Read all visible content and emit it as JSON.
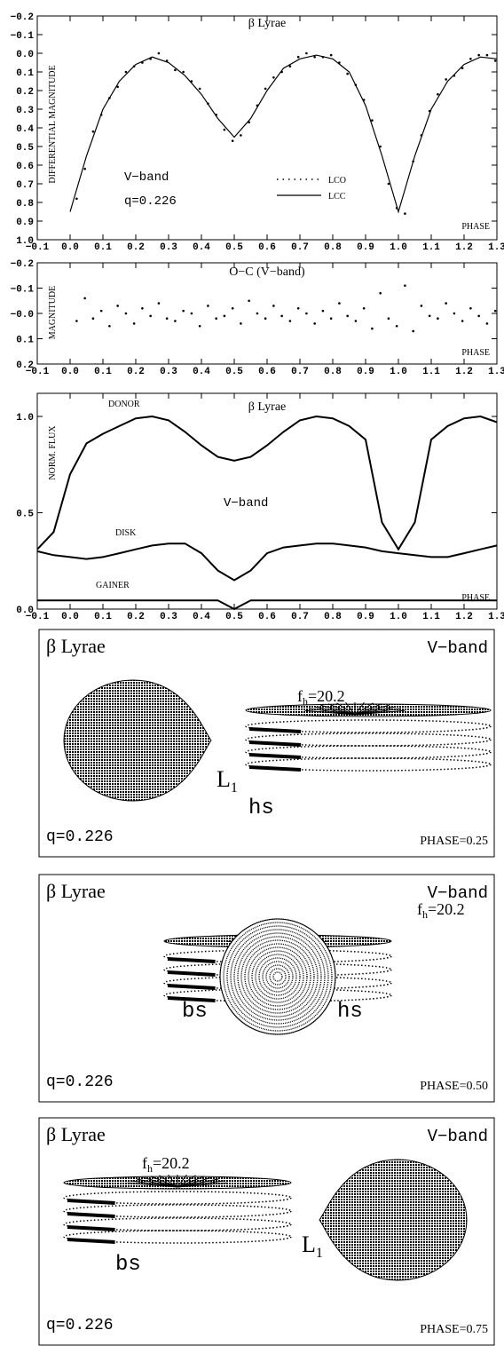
{
  "chart_data": [
    {
      "type": "scatter",
      "title": "β Lyrae",
      "ylabel": "DIFFERENTIAL MAGNITUDE",
      "xlabel": "PHASE",
      "xlim": [
        -0.1,
        1.3
      ],
      "ylim": [
        1.0,
        -0.2
      ],
      "xticks": [
        {
          "value": -0.1,
          "label": "−0.1"
        },
        {
          "value": 0,
          "label": "0.0"
        },
        0.1,
        0.2,
        0.3,
        0.4,
        0.5,
        0.6,
        0.7,
        0.8,
        0.9,
        {
          "value": 1,
          "label": "1.0"
        },
        1.1,
        1.2,
        1.3
      ],
      "yticks": [
        {
          "value": -0.2,
          "label": "−0.2"
        },
        {
          "value": -0.1,
          "label": "−0.1"
        },
        {
          "value": 0,
          "label": "0.0"
        },
        0.1,
        0.2,
        0.3,
        0.4,
        0.5,
        0.6,
        0.7,
        0.8,
        0.9,
        {
          "value": 1,
          "label": "1.0"
        }
      ],
      "annotations": [
        "V−band",
        "q=0.226"
      ],
      "series": [
        {
          "name": "LCO",
          "mode": "markers",
          "color": "#000000",
          "x": [
            0.02,
            0.045,
            0.07,
            0.095,
            0.12,
            0.145,
            0.17,
            0.195,
            0.22,
            0.245,
            0.27,
            0.295,
            0.32,
            0.345,
            0.37,
            0.395,
            0.42,
            0.445,
            0.47,
            0.495,
            0.52,
            0.545,
            0.57,
            0.595,
            0.62,
            0.645,
            0.67,
            0.695,
            0.72,
            0.745,
            0.77,
            0.795,
            0.82,
            0.845,
            0.87,
            0.895,
            0.92,
            0.945,
            0.97,
            0.995,
            1.02,
            1.045,
            1.07,
            1.095,
            1.12,
            1.145,
            1.17,
            1.195,
            1.22,
            1.245,
            1.27,
            1.295
          ],
          "values": [
            0.78,
            0.62,
            0.42,
            0.33,
            0.24,
            0.18,
            0.1,
            0.07,
            0.05,
            0.03,
            0.0,
            0.04,
            0.09,
            0.1,
            0.15,
            0.19,
            0.27,
            0.33,
            0.41,
            0.47,
            0.44,
            0.37,
            0.28,
            0.19,
            0.13,
            0.1,
            0.07,
            0.02,
            0.0,
            0.02,
            0.02,
            0.01,
            0.05,
            0.11,
            0.17,
            0.25,
            0.36,
            0.5,
            0.7,
            0.83,
            0.86,
            0.58,
            0.44,
            0.31,
            0.22,
            0.14,
            0.12,
            0.08,
            0.03,
            0.01,
            0.01,
            0.04
          ]
        },
        {
          "name": "LCC",
          "mode": "lines",
          "color": "#000000",
          "x": [
            0,
            0.05,
            0.1,
            0.15,
            0.2,
            0.25,
            0.3,
            0.35,
            0.4,
            0.45,
            0.5,
            0.55,
            0.6,
            0.65,
            0.7,
            0.75,
            0.8,
            0.85,
            0.9,
            0.95,
            1.0,
            1.05,
            1.1,
            1.15,
            1.2,
            1.25,
            1.3
          ],
          "values": [
            0.85,
            0.55,
            0.3,
            0.15,
            0.06,
            0.02,
            0.05,
            0.12,
            0.22,
            0.35,
            0.45,
            0.35,
            0.2,
            0.08,
            0.03,
            0.01,
            0.03,
            0.1,
            0.28,
            0.55,
            0.85,
            0.55,
            0.3,
            0.15,
            0.06,
            0.02,
            0.03
          ]
        }
      ]
    },
    {
      "type": "scatter",
      "title": "O−C (V−band)",
      "ylabel": "MAGNITUDE",
      "xlabel": "PHASE",
      "xlim": [
        -0.1,
        1.3
      ],
      "ylim": [
        0.2,
        -0.2
      ],
      "xticks": [
        {
          "value": -0.1,
          "label": "−0.1"
        },
        {
          "value": 0,
          "label": "0.0"
        },
        0.1,
        0.2,
        0.3,
        0.4,
        0.5,
        0.6,
        0.7,
        0.8,
        0.9,
        {
          "value": 1,
          "label": "1.0"
        },
        1.1,
        1.2,
        1.3
      ],
      "yticks": [
        {
          "value": -0.2,
          "label": "−0.2"
        },
        {
          "value": -0.1,
          "label": "−0.1"
        },
        {
          "value": 0,
          "label": "−0.0"
        },
        0.1,
        0.2
      ],
      "series": [
        {
          "mode": "markers",
          "color": "#000000",
          "x": [
            0.02,
            0.045,
            0.07,
            0.095,
            0.12,
            0.145,
            0.17,
            0.195,
            0.22,
            0.245,
            0.27,
            0.295,
            0.32,
            0.345,
            0.37,
            0.395,
            0.42,
            0.445,
            0.47,
            0.495,
            0.52,
            0.545,
            0.57,
            0.595,
            0.62,
            0.645,
            0.67,
            0.695,
            0.72,
            0.745,
            0.77,
            0.795,
            0.82,
            0.845,
            0.87,
            0.895,
            0.92,
            0.945,
            0.97,
            0.995,
            1.02,
            1.045,
            1.07,
            1.095,
            1.12,
            1.145,
            1.17,
            1.195,
            1.22,
            1.245,
            1.27,
            1.295
          ],
          "values": [
            0.03,
            -0.06,
            0.02,
            -0.01,
            0.05,
            -0.03,
            0.0,
            0.04,
            -0.02,
            0.01,
            -0.04,
            0.02,
            0.03,
            -0.01,
            0.0,
            0.05,
            -0.03,
            0.02,
            0.01,
            -0.02,
            0.04,
            -0.05,
            0.0,
            0.02,
            -0.03,
            0.01,
            0.03,
            -0.02,
            0.0,
            0.04,
            -0.01,
            0.02,
            -0.04,
            0.01,
            0.03,
            -0.02,
            0.06,
            -0.08,
            0.02,
            0.05,
            -0.11,
            0.07,
            -0.03,
            0.01,
            0.02,
            -0.04,
            0.0,
            0.03,
            -0.02,
            0.01,
            0.04,
            -0.01
          ]
        }
      ]
    },
    {
      "type": "line",
      "title": "β Lyrae",
      "ylabel": "NORM. FLUX",
      "xlabel": "PHASE",
      "xlim": [
        -0.1,
        1.3
      ],
      "ylim": [
        0,
        1.12
      ],
      "xticks": [
        {
          "value": -0.1,
          "label": "−0.1"
        },
        {
          "value": 0,
          "label": "0.0"
        },
        0.1,
        0.2,
        0.3,
        0.4,
        0.5,
        0.6,
        0.7,
        0.8,
        0.9,
        {
          "value": 1,
          "label": "1.0"
        },
        1.1,
        1.2,
        1.3
      ],
      "yticks": [
        {
          "value": 0,
          "label": "0.0"
        },
        0.5,
        {
          "value": 1,
          "label": "1.0"
        }
      ],
      "annotations": [
        "DONOR",
        "DISK",
        "GAINER",
        "V−band"
      ],
      "series": [
        {
          "mode": "lines",
          "color": "#000000",
          "x": [
            -0.1,
            -0.05,
            0,
            0.05,
            0.1,
            0.15,
            0.2,
            0.25,
            0.3,
            0.35,
            0.4,
            0.45,
            0.5,
            0.55,
            0.6,
            0.65,
            0.7,
            0.75,
            0.8,
            0.85,
            0.9,
            0.95,
            1.0,
            1.05,
            1.1,
            1.15,
            1.2,
            1.25,
            1.3
          ],
          "values": [
            0.31,
            0.4,
            0.7,
            0.86,
            0.91,
            0.95,
            0.99,
            1.0,
            0.98,
            0.92,
            0.85,
            0.79,
            0.77,
            0.79,
            0.85,
            0.92,
            0.98,
            1.0,
            0.99,
            0.95,
            0.88,
            0.45,
            0.31,
            0.45,
            0.88,
            0.95,
            0.99,
            1.0,
            0.97
          ]
        },
        {
          "mode": "lines",
          "color": "#000000",
          "x": [
            -0.1,
            -0.05,
            0,
            0.05,
            0.1,
            0.15,
            0.2,
            0.25,
            0.3,
            0.35,
            0.4,
            0.45,
            0.5,
            0.55,
            0.6,
            0.65,
            0.7,
            0.75,
            0.8,
            0.85,
            0.9,
            0.95,
            1.0,
            1.05,
            1.1,
            1.15,
            1.2,
            1.25,
            1.3
          ],
          "values": [
            0.3,
            0.28,
            0.27,
            0.26,
            0.27,
            0.29,
            0.31,
            0.33,
            0.34,
            0.34,
            0.29,
            0.2,
            0.15,
            0.2,
            0.29,
            0.32,
            0.33,
            0.34,
            0.34,
            0.33,
            0.32,
            0.3,
            0.29,
            0.28,
            0.27,
            0.27,
            0.29,
            0.31,
            0.33
          ]
        },
        {
          "mode": "lines",
          "color": "#000000",
          "x": [
            -0.1,
            -0.05,
            0,
            0.05,
            0.1,
            0.15,
            0.2,
            0.25,
            0.3,
            0.35,
            0.4,
            0.45,
            0.5,
            0.55,
            0.6,
            0.65,
            0.7,
            0.75,
            0.8,
            0.85,
            0.9,
            0.95,
            1.0,
            1.05,
            1.1,
            1.15,
            1.2,
            1.25,
            1.3
          ],
          "values": [
            0.045,
            0.045,
            0.045,
            0.045,
            0.045,
            0.045,
            0.045,
            0.045,
            0.045,
            0.045,
            0.045,
            0.045,
            0.0,
            0.045,
            0.045,
            0.045,
            0.045,
            0.045,
            0.045,
            0.045,
            0.045,
            0.045,
            0.045,
            0.045,
            0.045,
            0.045,
            0.045,
            0.045,
            0.045
          ]
        }
      ]
    }
  ],
  "views": [
    {
      "title": "β Lyrae",
      "band": "V−band",
      "fh": {
        "f": "f",
        "sub": "h",
        "rest": "=20.2"
      },
      "L": {
        "main": "L",
        "sub": "1"
      },
      "spots": [
        "hs"
      ],
      "q": "q=0.226",
      "phase": "PHASE=0.25"
    },
    {
      "title": "β Lyrae",
      "band": "V−band",
      "fh": {
        "f": "f",
        "sub": "h",
        "rest": "=20.2"
      },
      "spots": [
        "bs",
        "hs"
      ],
      "q": "q=0.226",
      "phase": "PHASE=0.50"
    },
    {
      "title": "β Lyrae",
      "band": "V−band",
      "fh": {
        "f": "f",
        "sub": "h",
        "rest": "=20.2"
      },
      "L": {
        "main": "L",
        "sub": "1"
      },
      "spots": [
        "bs"
      ],
      "q": "q=0.226",
      "phase": "PHASE=0.75"
    }
  ]
}
